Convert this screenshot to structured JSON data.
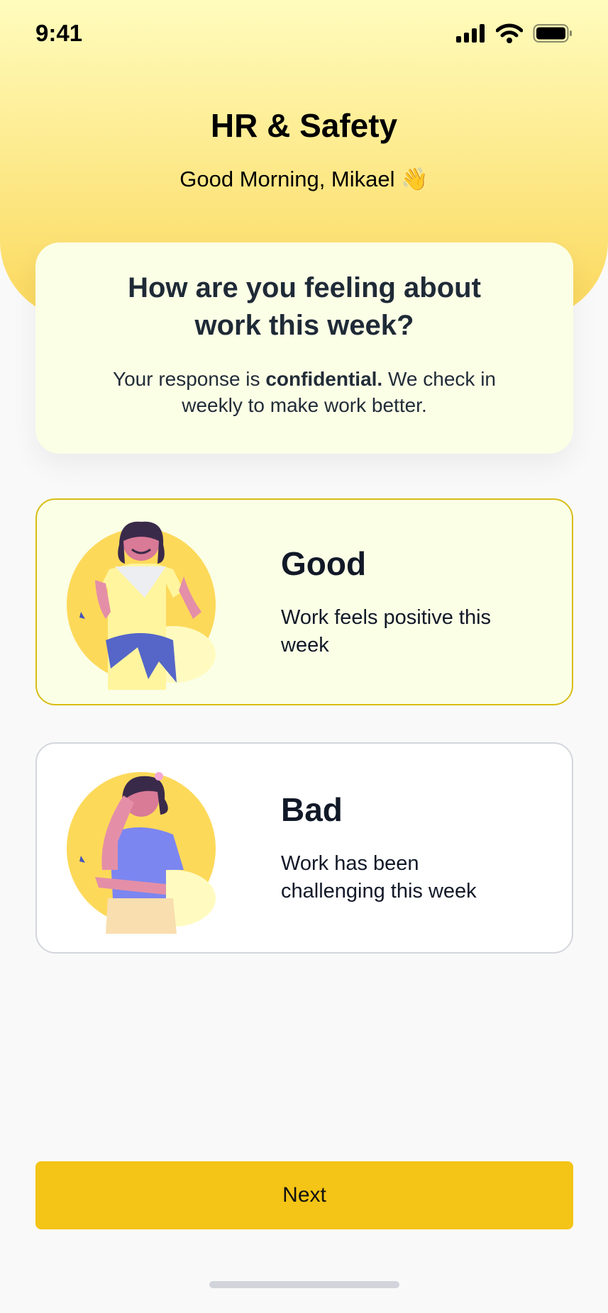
{
  "status_bar": {
    "time": "9:41"
  },
  "header": {
    "title": "HR & Safety",
    "greeting": "Good Morning, Mikael",
    "greeting_emoji": "👋"
  },
  "question_card": {
    "question": "How are you feeling about work this week?",
    "note_prefix": "Your response is ",
    "note_bold": "confidential.",
    "note_suffix": " We check in weekly to make work better."
  },
  "options": [
    {
      "title": "Good",
      "description": "Work feels positive this week",
      "selected": true
    },
    {
      "title": "Bad",
      "description": "Work has been challenging this week",
      "selected": false
    }
  ],
  "next_label": "Next",
  "colors": {
    "accent": "#f4c416",
    "selected_border": "#d8bd17",
    "card_bg": "#fbffe6"
  }
}
